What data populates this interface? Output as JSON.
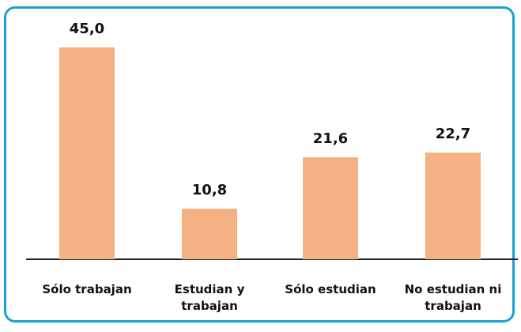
{
  "chart_data": {
    "type": "bar",
    "categories": [
      "Sólo trabajan",
      "Estudian y trabajan",
      "Sólo estudian",
      "No estudian ni trabajan"
    ],
    "values": [
      45.0,
      10.8,
      21.6,
      22.7
    ],
    "value_labels": [
      "45,0",
      "10,8",
      "21,6",
      "22,7"
    ],
    "color": "#f4b183"
  }
}
